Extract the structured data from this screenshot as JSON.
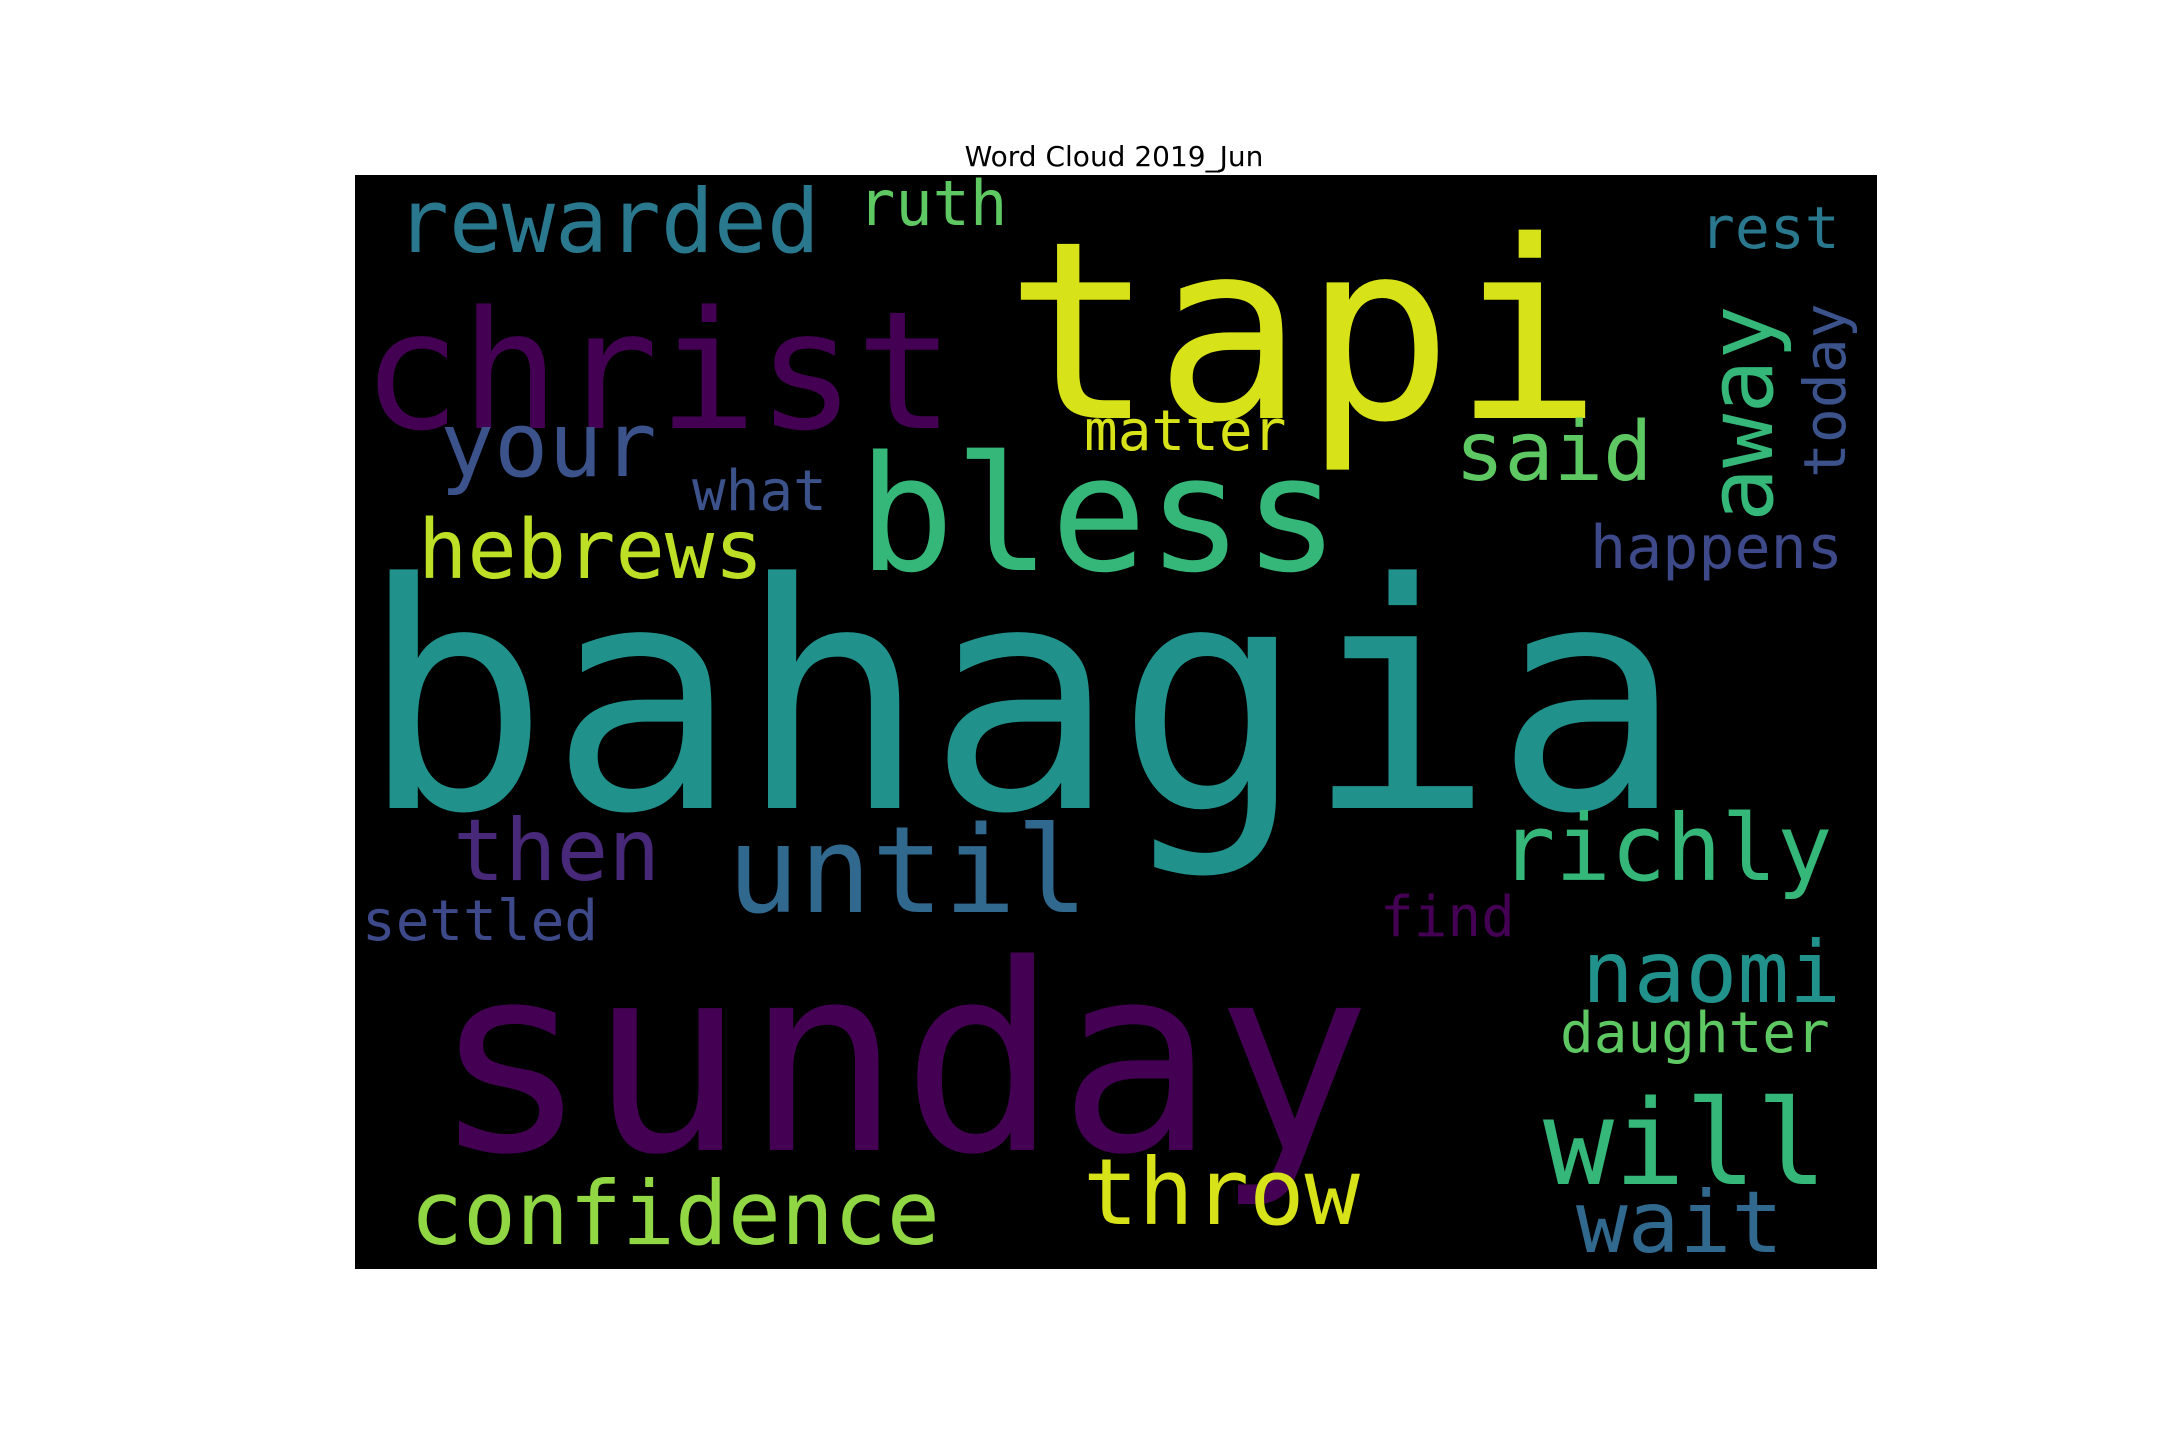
{
  "chart_data": {
    "type": "wordcloud",
    "title": "Word Cloud 2019_Jun",
    "background_color": "#000000",
    "colormap": "viridis",
    "words": [
      {
        "text": "bahagia",
        "color": "#21918c"
      },
      {
        "text": "sunday",
        "color": "#440154"
      },
      {
        "text": "tapi",
        "color": "#d8e219"
      },
      {
        "text": "christ",
        "color": "#440154"
      },
      {
        "text": "bless",
        "color": "#35b779"
      },
      {
        "text": "until",
        "color": "#31688e"
      },
      {
        "text": "will",
        "color": "#35b779"
      },
      {
        "text": "confidence",
        "color": "#90d743"
      },
      {
        "text": "rewarded",
        "color": "#2a788e"
      },
      {
        "text": "throw",
        "color": "#d8e219"
      },
      {
        "text": "hebrews",
        "color": "#bddf26"
      },
      {
        "text": "richly",
        "color": "#35b779"
      },
      {
        "text": "naomi",
        "color": "#21918c"
      },
      {
        "text": "away",
        "color": "#35b779"
      },
      {
        "text": "your",
        "color": "#3b528b"
      },
      {
        "text": "then",
        "color": "#482878"
      },
      {
        "text": "wait",
        "color": "#31688e"
      },
      {
        "text": "said",
        "color": "#5ec962"
      },
      {
        "text": "ruth",
        "color": "#5ec962"
      },
      {
        "text": "rest",
        "color": "#2a788e"
      },
      {
        "text": "matter",
        "color": "#d8e219"
      },
      {
        "text": "today",
        "color": "#3b528b"
      },
      {
        "text": "what",
        "color": "#3b528b"
      },
      {
        "text": "happens",
        "color": "#3e4989"
      },
      {
        "text": "settled",
        "color": "#3e4989"
      },
      {
        "text": "find",
        "color": "#440154"
      },
      {
        "text": "daughter",
        "color": "#5ec962"
      }
    ]
  }
}
